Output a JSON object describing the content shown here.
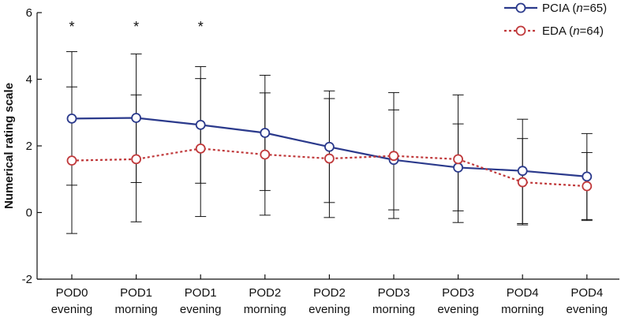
{
  "chart_data": {
    "type": "line",
    "title": "",
    "xlabel": "",
    "ylabel": "Numerical rating scale",
    "ylim": [
      -2,
      6
    ],
    "yticks": [
      -2,
      0,
      2,
      4,
      6
    ],
    "categories": [
      [
        "POD0",
        "evening"
      ],
      [
        "POD1",
        "morning"
      ],
      [
        "POD1",
        "evening"
      ],
      [
        "POD2",
        "morning"
      ],
      [
        "POD2",
        "evening"
      ],
      [
        "POD3",
        "morning"
      ],
      [
        "POD3",
        "evening"
      ],
      [
        "POD4",
        "morning"
      ],
      [
        "POD4",
        "evening"
      ]
    ],
    "series": [
      {
        "name": "PCIA",
        "n_label": "n",
        "n_value": "65",
        "color": "#2b3a8c",
        "style": "solid",
        "values": [
          2.82,
          2.84,
          2.63,
          2.39,
          1.97,
          1.58,
          1.35,
          1.25,
          1.08
        ],
        "error_high": [
          4.83,
          4.76,
          4.38,
          4.12,
          3.65,
          3.6,
          3.53,
          2.8,
          2.37
        ],
        "error_low": [
          0.82,
          0.9,
          0.88,
          0.66,
          0.3,
          0.08,
          0.05,
          -0.33,
          -0.21
        ]
      },
      {
        "name": "EDA",
        "n_label": "n",
        "n_value": "64",
        "color": "#c0393b",
        "style": "dotted",
        "values": [
          1.56,
          1.6,
          1.92,
          1.74,
          1.62,
          1.7,
          1.6,
          0.91,
          0.79
        ],
        "error_high": [
          3.77,
          3.53,
          4.02,
          3.59,
          3.42,
          3.08,
          2.66,
          2.22,
          1.8
        ],
        "error_low": [
          -0.63,
          -0.28,
          -0.12,
          -0.08,
          -0.15,
          -0.18,
          -0.3,
          -0.37,
          -0.24
        ]
      }
    ],
    "significance_markers": [
      "*",
      "*",
      "*",
      "",
      "",
      "",
      "",
      "",
      ""
    ],
    "legend_position": "top-right",
    "grid": false
  }
}
